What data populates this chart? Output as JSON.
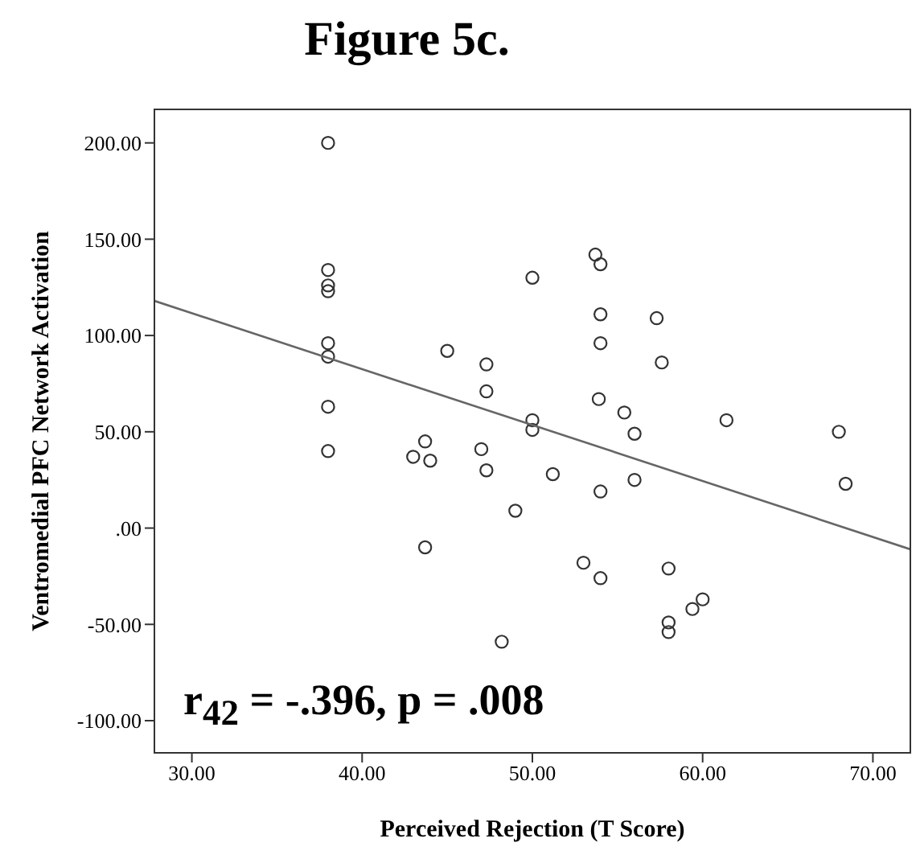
{
  "chart_data": {
    "type": "scatter",
    "title": "Figure 5c.",
    "xlabel": "Perceived Rejection (T Score)",
    "ylabel": "Ventromedial PFC Network Activation",
    "annotations": [
      "r$_{42}$ = -.396, p = .008"
    ],
    "xlim": [
      27.8,
      72.2
    ],
    "ylim": [
      -116.7,
      217.4
    ],
    "xticks": [
      {
        "value": 30,
        "label": "30.00"
      },
      {
        "value": 40,
        "label": "40.00"
      },
      {
        "value": 50,
        "label": "50.00"
      },
      {
        "value": 60,
        "label": "60.00"
      },
      {
        "value": 70,
        "label": "70.00"
      }
    ],
    "yticks": [
      {
        "value": -100,
        "label": "-100.00"
      },
      {
        "value": -50,
        "label": "-50.00"
      },
      {
        "value": 0,
        "label": ".00"
      },
      {
        "value": 50,
        "label": "50.00"
      },
      {
        "value": 100,
        "label": "100.00"
      },
      {
        "value": 150,
        "label": "150.00"
      },
      {
        "value": 200,
        "label": "200.00"
      }
    ],
    "grid": false,
    "legend": false,
    "marker": "circle",
    "series": [
      {
        "color": "#333333",
        "x": [
          38,
          38,
          38,
          38,
          38,
          38,
          38,
          38,
          45,
          47.3,
          47.3,
          43.7,
          43,
          44,
          47,
          47.3,
          53.7,
          54,
          50,
          54,
          57.3,
          54,
          57.6,
          53.9,
          55.4,
          50,
          50,
          56,
          61.4,
          68,
          51.2,
          56,
          54,
          68.4,
          49,
          43.7,
          53,
          54,
          58,
          60,
          59.4,
          58,
          58,
          48.2
        ],
        "values": [
          200,
          134,
          126,
          123,
          96,
          89,
          63,
          40,
          92,
          85,
          71,
          45,
          37,
          35,
          41,
          30,
          142,
          137,
          130,
          111,
          109,
          96,
          86,
          67,
          60,
          56,
          51,
          49,
          56,
          50,
          28,
          25,
          19,
          23,
          9,
          -10,
          -18,
          -26,
          -21,
          -37,
          -42,
          -49,
          -54,
          -59
        ]
      },
      {
        "type": "line",
        "color": "#666666",
        "marker": "none",
        "x": [
          27.8,
          72.2
        ],
        "values": [
          118,
          -11
        ]
      }
    ]
  }
}
